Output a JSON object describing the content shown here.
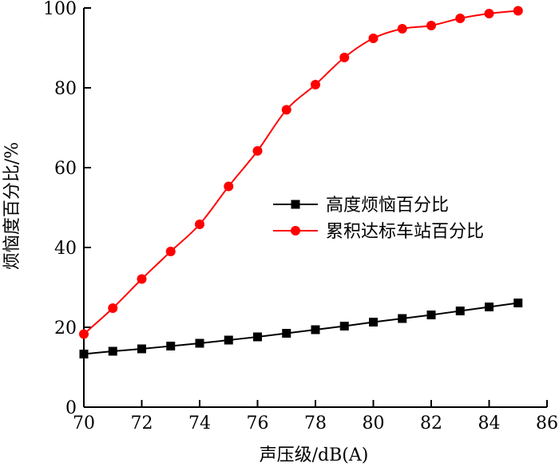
{
  "chart_data": {
    "type": "line",
    "xlabel": "声压级/dB(A)",
    "ylabel": "烦恼度百分比/%",
    "xlim": [
      70,
      86
    ],
    "ylim": [
      0,
      100
    ],
    "xticks": [
      70,
      72,
      74,
      76,
      78,
      80,
      82,
      84,
      86
    ],
    "yticks": [
      0,
      20,
      40,
      60,
      80,
      100
    ],
    "grid": false,
    "legend_position": "center-right",
    "series": [
      {
        "name": "高度烦恼百分比",
        "color": "#000000",
        "marker": "square",
        "x": [
          70,
          71,
          72,
          73,
          74,
          75,
          76,
          77,
          78,
          79,
          80,
          81,
          82,
          83,
          84,
          85
        ],
        "y": [
          13.3,
          14.0,
          14.6,
          15.3,
          16.0,
          16.8,
          17.6,
          18.5,
          19.4,
          20.3,
          21.3,
          22.2,
          23.1,
          24.1,
          25.1,
          26.1
        ]
      },
      {
        "name": "累积达标车站百分比",
        "color": "#ff0000",
        "marker": "circle",
        "x": [
          70,
          71,
          72,
          73,
          74,
          75,
          76,
          77,
          78,
          79,
          80,
          81,
          82,
          83,
          84,
          85
        ],
        "y": [
          18.3,
          24.8,
          32.1,
          39.0,
          45.8,
          55.3,
          64.2,
          74.5,
          80.8,
          87.6,
          92.4,
          94.8,
          95.6,
          97.4,
          98.6,
          99.3
        ]
      }
    ]
  }
}
